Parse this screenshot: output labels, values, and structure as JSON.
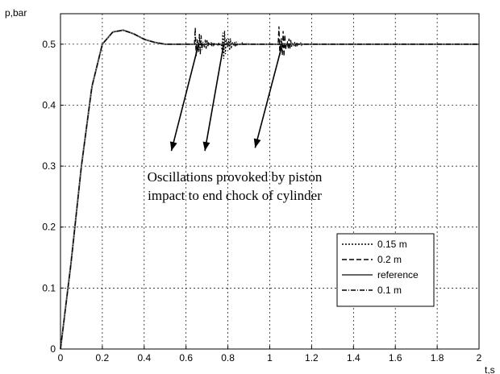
{
  "chart_data": {
    "type": "line",
    "title": "",
    "xlabel": "t,s",
    "ylabel": "p,bar",
    "xlim": [
      0,
      2
    ],
    "ylim": [
      0,
      0.55
    ],
    "grid": true,
    "legend_position": "bottom-right",
    "x_ticks": [
      "0",
      "0.2",
      "0.4",
      "0.6",
      "0.8",
      "1",
      "1.2",
      "1.4",
      "1.6",
      "1.8",
      "2"
    ],
    "y_ticks": [
      "0",
      "0.1",
      "0.2",
      "0.3",
      "0.4",
      "0.5"
    ],
    "x": [
      0,
      0.05,
      0.1,
      0.15,
      0.2,
      0.25,
      0.3,
      0.35,
      0.4,
      0.45,
      0.5,
      0.55,
      0.6,
      0.7,
      0.8,
      1.0,
      1.2,
      1.4,
      1.6,
      1.8,
      2.0
    ],
    "series": [
      {
        "name": "0.15 m",
        "dash": "2 2",
        "values": [
          0,
          0.14,
          0.3,
          0.43,
          0.5,
          0.52,
          0.523,
          0.517,
          0.508,
          0.503,
          0.5,
          0.5,
          0.5,
          0.5,
          0.5,
          0.5,
          0.5,
          0.5,
          0.5,
          0.5,
          0.5
        ],
        "oscillation": {
          "t": 0.78,
          "amp": 0.025
        }
      },
      {
        "name": "0.2 m",
        "dash": "6 3",
        "values": [
          0,
          0.14,
          0.3,
          0.43,
          0.5,
          0.52,
          0.523,
          0.517,
          0.508,
          0.503,
          0.5,
          0.5,
          0.5,
          0.5,
          0.5,
          0.5,
          0.5,
          0.5,
          0.5,
          0.5,
          0.5
        ],
        "oscillation": {
          "t": 1.05,
          "amp": 0.035
        }
      },
      {
        "name": "reference",
        "dash": "",
        "values": [
          0,
          0.14,
          0.3,
          0.43,
          0.5,
          0.52,
          0.523,
          0.517,
          0.508,
          0.503,
          0.5,
          0.5,
          0.5,
          0.5,
          0.5,
          0.5,
          0.5,
          0.5,
          0.5,
          0.5,
          0.5
        ]
      },
      {
        "name": "0.1 m",
        "dash": "6 2 1 2",
        "values": [
          0,
          0.14,
          0.3,
          0.43,
          0.5,
          0.52,
          0.523,
          0.517,
          0.508,
          0.503,
          0.5,
          0.5,
          0.5,
          0.5,
          0.5,
          0.5,
          0.5,
          0.5,
          0.5,
          0.5,
          0.5
        ],
        "oscillation": {
          "t": 0.65,
          "amp": 0.03
        }
      }
    ],
    "annotation": {
      "lines": [
        "Oscillations provoked by piston",
        "impact to end chock of cylinder"
      ],
      "arrows": [
        {
          "from": [
            0.66,
            0.5
          ],
          "to": [
            0.53,
            0.325
          ]
        },
        {
          "from": [
            0.78,
            0.5
          ],
          "to": [
            0.69,
            0.325
          ]
        },
        {
          "from": [
            1.06,
            0.5
          ],
          "to": [
            0.93,
            0.33
          ]
        }
      ]
    }
  }
}
